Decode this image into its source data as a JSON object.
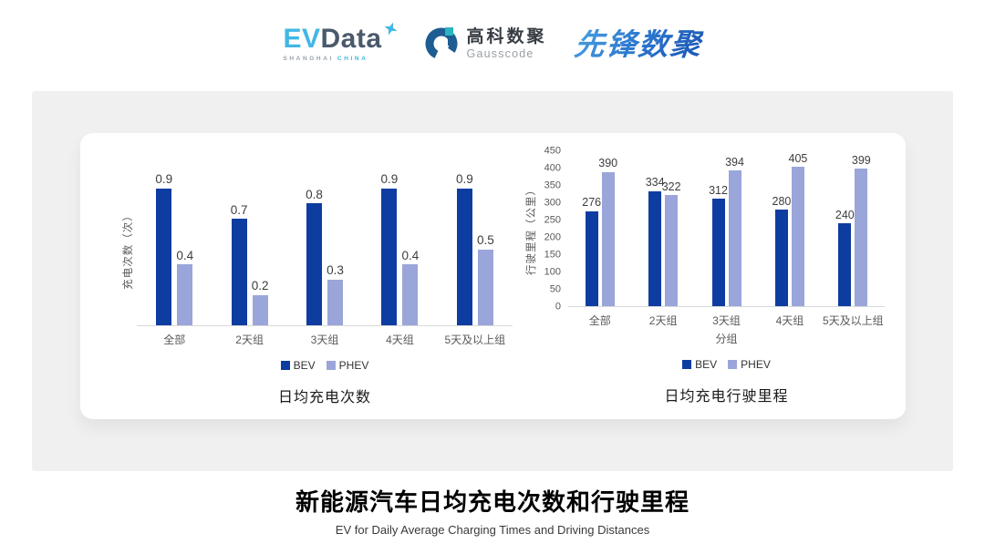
{
  "header": {
    "logos": {
      "evdata": {
        "ev": "EV",
        "data": "Data",
        "sub_left": "SHANGHAI",
        "sub_right": "CHINA"
      },
      "gausscode": {
        "cn": "高科数聚",
        "en": "Gausscode"
      },
      "xianfeng": {
        "text": "先锋数聚"
      }
    }
  },
  "chart_data": [
    {
      "type": "bar",
      "title": "日均充电次数",
      "ylabel": "充电次数（次）",
      "xlabel": "",
      "categories": [
        "全部",
        "2天组",
        "3天组",
        "4天组",
        "5天及以上组"
      ],
      "series": [
        {
          "name": "BEV",
          "color": "#0d3da0",
          "values": [
            0.9,
            0.7,
            0.8,
            0.9,
            0.9
          ]
        },
        {
          "name": "PHEV",
          "color": "#9aa5d9",
          "values": [
            0.4,
            0.2,
            0.3,
            0.4,
            0.5
          ]
        }
      ],
      "ylim": [
        0,
        1
      ],
      "yticks": [],
      "grid": false,
      "legend_position": "bottom"
    },
    {
      "type": "bar",
      "title": "日均充电行驶里程",
      "ylabel": "行驶里程（公里）",
      "xlabel": "分组",
      "categories": [
        "全部",
        "2天组",
        "3天组",
        "4天组",
        "5天及以上组"
      ],
      "series": [
        {
          "name": "BEV",
          "color": "#0d3da0",
          "values": [
            276,
            334,
            312,
            280,
            240
          ]
        },
        {
          "name": "PHEV",
          "color": "#9aa5d9",
          "values": [
            390,
            322,
            394,
            405,
            399
          ]
        }
      ],
      "ylim": [
        0,
        450
      ],
      "yticks": [
        0,
        50,
        100,
        150,
        200,
        250,
        300,
        350,
        400,
        450
      ],
      "grid": false,
      "legend_position": "bottom"
    }
  ],
  "footer": {
    "title": "新能源汽车日均充电次数和行驶里程",
    "subtitle": "EV for Daily Average Charging Times and Driving Distances"
  },
  "colors": {
    "bev": "#0d3da0",
    "phev": "#9aa5d9",
    "panel": "#f0f0f0"
  }
}
